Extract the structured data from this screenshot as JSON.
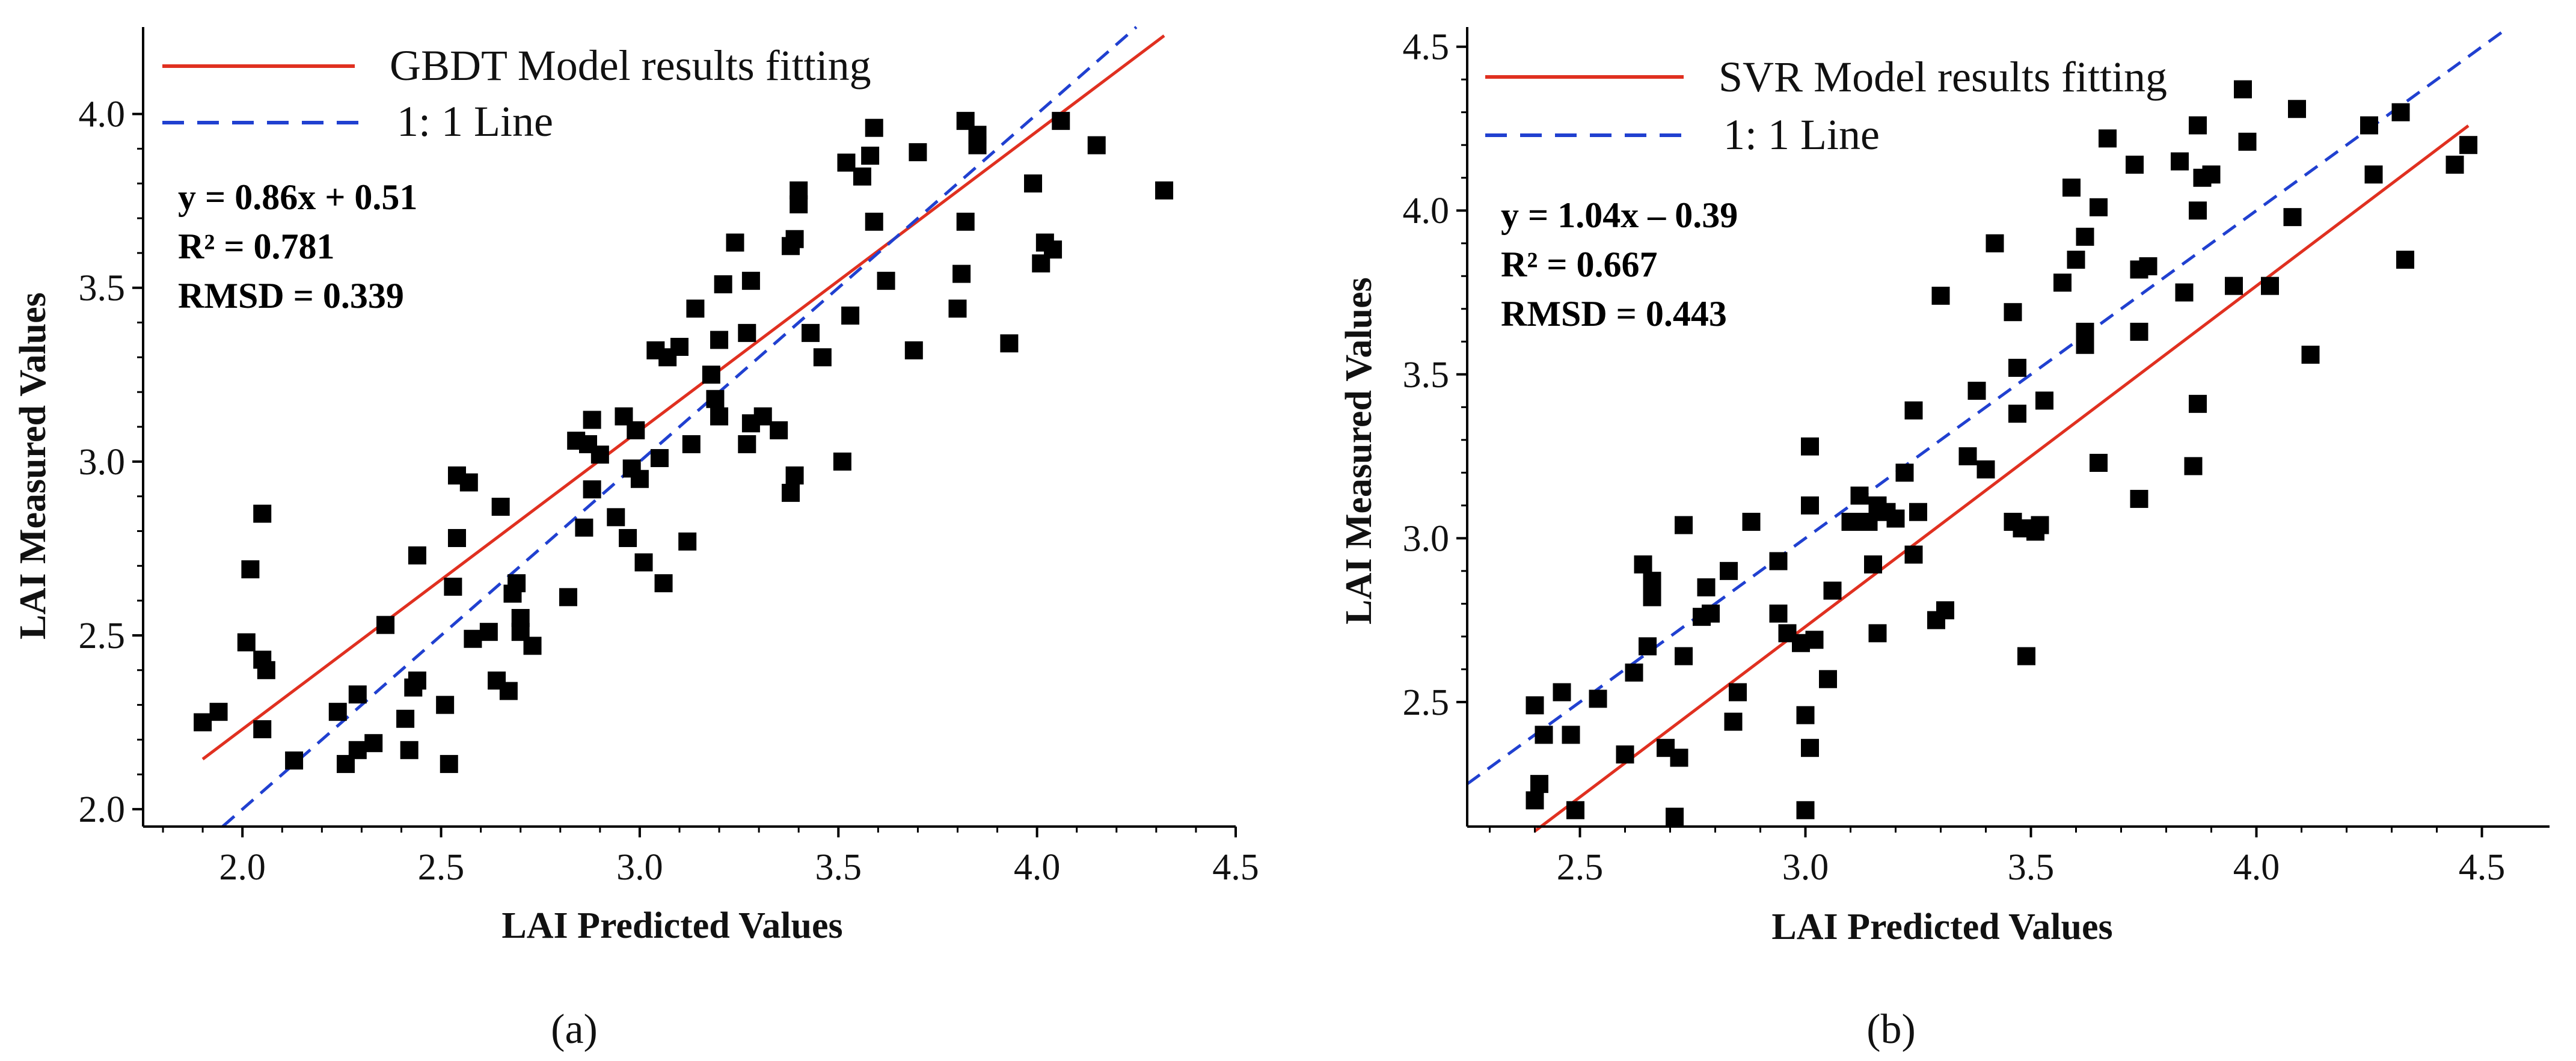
{
  "chart_data": [
    {
      "type": "scatter",
      "panel_label": "(a)",
      "xlabel": "LAI Predicted Values",
      "ylabel": "LAI Measured Values",
      "xlim": [
        1.75,
        4.5
      ],
      "ylim": [
        1.95,
        4.25
      ],
      "xticks": [
        "2.0",
        "2.5",
        "3.0",
        "3.5",
        "4.0",
        "4.5"
      ],
      "yticks": [
        "2.0",
        "2.5",
        "3.0",
        "3.5",
        "4.0"
      ],
      "grid": false,
      "legend_position": "top-left",
      "fit_line": {
        "name": "GBDT Model results fitting",
        "color": "#e03020",
        "slope": 0.86,
        "intercept": 0.51,
        "x_range": [
          1.9,
          4.32
        ]
      },
      "identity_line": {
        "name": "1: 1 Line",
        "color": "#2040d0"
      },
      "stats": {
        "equation": "y = 0.86x + 0.51",
        "r2": "R² = 0.781",
        "rmsd": "RMSD = 0.339"
      },
      "points": [
        [
          1.9,
          2.25
        ],
        [
          1.94,
          2.28
        ],
        [
          2.01,
          2.48
        ],
        [
          2.02,
          2.69
        ],
        [
          2.05,
          2.43
        ],
        [
          2.06,
          2.4
        ],
        [
          2.05,
          2.85
        ],
        [
          2.05,
          2.23
        ],
        [
          2.13,
          2.14
        ],
        [
          2.24,
          2.28
        ],
        [
          2.26,
          2.13
        ],
        [
          2.29,
          2.33
        ],
        [
          2.29,
          2.17
        ],
        [
          2.33,
          2.19
        ],
        [
          2.36,
          2.53
        ],
        [
          2.41,
          2.26
        ],
        [
          2.42,
          2.17
        ],
        [
          2.43,
          2.35
        ],
        [
          2.44,
          2.37
        ],
        [
          2.44,
          2.73
        ],
        [
          2.51,
          2.3
        ],
        [
          2.52,
          2.13
        ],
        [
          2.53,
          2.64
        ],
        [
          2.54,
          2.78
        ],
        [
          2.54,
          2.96
        ],
        [
          2.57,
          2.94
        ],
        [
          2.58,
          2.49
        ],
        [
          2.62,
          2.51
        ],
        [
          2.64,
          2.37
        ],
        [
          2.65,
          2.87
        ],
        [
          2.67,
          2.34
        ],
        [
          2.68,
          2.62
        ],
        [
          2.69,
          2.65
        ],
        [
          2.7,
          2.51
        ],
        [
          2.7,
          2.55
        ],
        [
          2.73,
          2.47
        ],
        [
          2.82,
          2.61
        ],
        [
          2.84,
          3.06
        ],
        [
          2.86,
          2.81
        ],
        [
          2.87,
          3.05
        ],
        [
          2.88,
          2.92
        ],
        [
          2.88,
          3.12
        ],
        [
          2.9,
          3.02
        ],
        [
          2.94,
          2.84
        ],
        [
          2.96,
          3.13
        ],
        [
          2.97,
          2.78
        ],
        [
          2.98,
          2.98
        ],
        [
          2.99,
          3.09
        ],
        [
          3.0,
          2.95
        ],
        [
          3.01,
          2.71
        ],
        [
          3.04,
          3.32
        ],
        [
          3.05,
          3.01
        ],
        [
          3.06,
          2.65
        ],
        [
          3.07,
          3.3
        ],
        [
          3.1,
          3.33
        ],
        [
          3.12,
          2.77
        ],
        [
          3.13,
          3.05
        ],
        [
          3.14,
          3.44
        ],
        [
          3.18,
          3.25
        ],
        [
          3.19,
          3.18
        ],
        [
          3.2,
          3.13
        ],
        [
          3.2,
          3.35
        ],
        [
          3.21,
          3.51
        ],
        [
          3.24,
          3.63
        ],
        [
          3.27,
          3.05
        ],
        [
          3.27,
          3.37
        ],
        [
          3.28,
          3.11
        ],
        [
          3.28,
          3.52
        ],
        [
          3.31,
          3.13
        ],
        [
          3.35,
          3.09
        ],
        [
          3.38,
          2.91
        ],
        [
          3.39,
          2.96
        ],
        [
          3.38,
          3.62
        ],
        [
          3.39,
          3.64
        ],
        [
          3.4,
          3.74
        ],
        [
          3.4,
          3.78
        ],
        [
          3.43,
          3.37
        ],
        [
          3.46,
          3.3
        ],
        [
          3.51,
          3.0
        ],
        [
          3.52,
          3.86
        ],
        [
          3.53,
          3.42
        ],
        [
          3.56,
          3.82
        ],
        [
          3.58,
          3.88
        ],
        [
          3.59,
          3.96
        ],
        [
          3.59,
          3.69
        ],
        [
          3.62,
          3.52
        ],
        [
          3.69,
          3.32
        ],
        [
          3.7,
          3.89
        ],
        [
          3.8,
          3.44
        ],
        [
          3.81,
          3.54
        ],
        [
          3.82,
          3.69
        ],
        [
          3.82,
          3.98
        ],
        [
          3.85,
          3.94
        ],
        [
          3.85,
          3.91
        ],
        [
          3.93,
          3.34
        ],
        [
          3.99,
          3.8
        ],
        [
          4.01,
          3.57
        ],
        [
          4.02,
          3.63
        ],
        [
          4.04,
          3.61
        ],
        [
          4.06,
          3.98
        ],
        [
          4.15,
          3.91
        ],
        [
          4.32,
          3.78
        ]
      ]
    },
    {
      "type": "scatter",
      "panel_label": "(b)",
      "xlabel": "LAI Predicted Values",
      "ylabel": "LAI Measured Values",
      "xlim": [
        2.25,
        4.65
      ],
      "ylim": [
        2.12,
        4.56
      ],
      "xticks": [
        "2.5",
        "3.0",
        "3.5",
        "4.0",
        "4.5"
      ],
      "yticks": [
        "2.5",
        "3.0",
        "3.5",
        "4.0",
        "4.5"
      ],
      "grid": false,
      "legend_position": "top-left",
      "fit_line": {
        "name": "SVR Model results fitting",
        "color": "#e03020",
        "slope": 1.04,
        "intercept": -0.39,
        "x_range": [
          2.4,
          4.47
        ]
      },
      "identity_line": {
        "name": "1: 1 Line",
        "color": "#2040d0"
      },
      "stats": {
        "equation": "y = 1.04x – 0.39",
        "r2": "R² = 0.667",
        "rmsd": "RMSD = 0.443"
      },
      "points": [
        [
          2.4,
          2.2
        ],
        [
          2.4,
          2.49
        ],
        [
          2.41,
          2.25
        ],
        [
          2.42,
          2.4
        ],
        [
          2.46,
          2.53
        ],
        [
          2.48,
          2.4
        ],
        [
          2.49,
          2.17
        ],
        [
          2.54,
          2.51
        ],
        [
          2.6,
          2.34
        ],
        [
          2.62,
          2.59
        ],
        [
          2.64,
          2.92
        ],
        [
          2.65,
          2.67
        ],
        [
          2.66,
          2.87
        ],
        [
          2.66,
          2.82
        ],
        [
          2.69,
          2.36
        ],
        [
          2.71,
          2.15
        ],
        [
          2.72,
          2.33
        ],
        [
          2.73,
          3.04
        ],
        [
          2.73,
          2.64
        ],
        [
          2.77,
          2.76
        ],
        [
          2.78,
          2.85
        ],
        [
          2.79,
          2.77
        ],
        [
          2.83,
          2.9
        ],
        [
          2.84,
          2.44
        ],
        [
          2.85,
          2.53
        ],
        [
          2.88,
          3.05
        ],
        [
          2.94,
          2.93
        ],
        [
          2.94,
          2.77
        ],
        [
          2.96,
          2.71
        ],
        [
          2.99,
          2.68
        ],
        [
          3.0,
          2.17
        ],
        [
          3.0,
          2.46
        ],
        [
          3.01,
          3.28
        ],
        [
          3.01,
          3.1
        ],
        [
          3.01,
          2.36
        ],
        [
          3.02,
          2.69
        ],
        [
          3.05,
          2.57
        ],
        [
          3.06,
          2.84
        ],
        [
          3.1,
          3.05
        ],
        [
          3.12,
          3.13
        ],
        [
          3.14,
          3.05
        ],
        [
          3.15,
          2.92
        ],
        [
          3.16,
          3.1
        ],
        [
          3.16,
          2.71
        ],
        [
          3.18,
          3.08
        ],
        [
          3.2,
          3.06
        ],
        [
          3.22,
          3.2
        ],
        [
          3.24,
          2.95
        ],
        [
          3.24,
          3.39
        ],
        [
          3.25,
          3.08
        ],
        [
          3.29,
          2.75
        ],
        [
          3.3,
          3.74
        ],
        [
          3.31,
          2.78
        ],
        [
          3.36,
          3.25
        ],
        [
          3.38,
          3.45
        ],
        [
          3.4,
          3.21
        ],
        [
          3.42,
          3.9
        ],
        [
          3.46,
          3.05
        ],
        [
          3.46,
          3.69
        ],
        [
          3.47,
          3.52
        ],
        [
          3.47,
          3.38
        ],
        [
          3.48,
          3.03
        ],
        [
          3.49,
          2.64
        ],
        [
          3.5,
          3.03
        ],
        [
          3.51,
          3.02
        ],
        [
          3.52,
          3.04
        ],
        [
          3.53,
          3.42
        ],
        [
          3.57,
          3.78
        ],
        [
          3.59,
          4.07
        ],
        [
          3.6,
          3.85
        ],
        [
          3.62,
          3.59
        ],
        [
          3.62,
          3.92
        ],
        [
          3.62,
          3.63
        ],
        [
          3.65,
          3.23
        ],
        [
          3.65,
          4.01
        ],
        [
          3.67,
          4.22
        ],
        [
          3.73,
          4.14
        ],
        [
          3.74,
          3.63
        ],
        [
          3.74,
          3.82
        ],
        [
          3.74,
          3.12
        ],
        [
          3.76,
          3.83
        ],
        [
          3.83,
          4.15
        ],
        [
          3.84,
          3.75
        ],
        [
          3.86,
          3.22
        ],
        [
          3.87,
          3.41
        ],
        [
          3.87,
          4.0
        ],
        [
          3.87,
          4.26
        ],
        [
          3.88,
          4.1
        ],
        [
          3.9,
          4.11
        ],
        [
          3.95,
          3.77
        ],
        [
          3.97,
          4.37
        ],
        [
          3.98,
          4.21
        ],
        [
          4.03,
          3.77
        ],
        [
          4.08,
          3.98
        ],
        [
          4.09,
          4.31
        ],
        [
          4.12,
          3.56
        ],
        [
          4.25,
          4.26
        ],
        [
          4.26,
          4.11
        ],
        [
          4.32,
          4.3
        ],
        [
          4.33,
          3.85
        ],
        [
          4.44,
          4.14
        ],
        [
          4.47,
          4.2
        ]
      ]
    }
  ]
}
